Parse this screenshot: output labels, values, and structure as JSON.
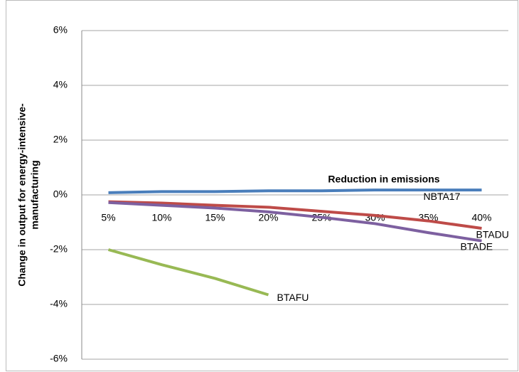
{
  "chart_data": {
    "type": "line",
    "y_label": [
      "Change in output for energy-intensive-",
      "manufacturing"
    ],
    "x_label": "Reduction in emissions",
    "categories": [
      "5%",
      "10%",
      "15%",
      "20%",
      "25%",
      "30%",
      "35%",
      "40%"
    ],
    "series": [
      {
        "name": "NBTA17",
        "color": "#4a7ebb",
        "values": [
          0.08,
          0.12,
          0.12,
          0.15,
          0.15,
          0.18,
          0.18,
          0.18
        ]
      },
      {
        "name": "BTADU",
        "color": "#be4b48",
        "values": [
          -0.25,
          -0.3,
          -0.38,
          -0.45,
          -0.6,
          -0.75,
          -0.95,
          -1.22
        ]
      },
      {
        "name": "BTADE",
        "color": "#7d60a0",
        "values": [
          -0.28,
          -0.38,
          -0.48,
          -0.62,
          -0.82,
          -1.05,
          -1.38,
          -1.68
        ]
      },
      {
        "name": "BTAFU",
        "color": "#98b954",
        "values": [
          -2.0,
          -2.55,
          -3.05,
          -3.65,
          null,
          null,
          null,
          null
        ]
      }
    ],
    "ylim": [
      -6,
      6
    ],
    "yticks": [
      {
        "value": -6,
        "label": "-6%"
      },
      {
        "value": -4,
        "label": "-4%"
      },
      {
        "value": -2,
        "label": "-2%"
      },
      {
        "value": 0,
        "label": "0%"
      },
      {
        "value": 2,
        "label": "2%"
      },
      {
        "value": 4,
        "label": "4%"
      },
      {
        "value": 6,
        "label": "6%"
      }
    ],
    "grid": true
  }
}
